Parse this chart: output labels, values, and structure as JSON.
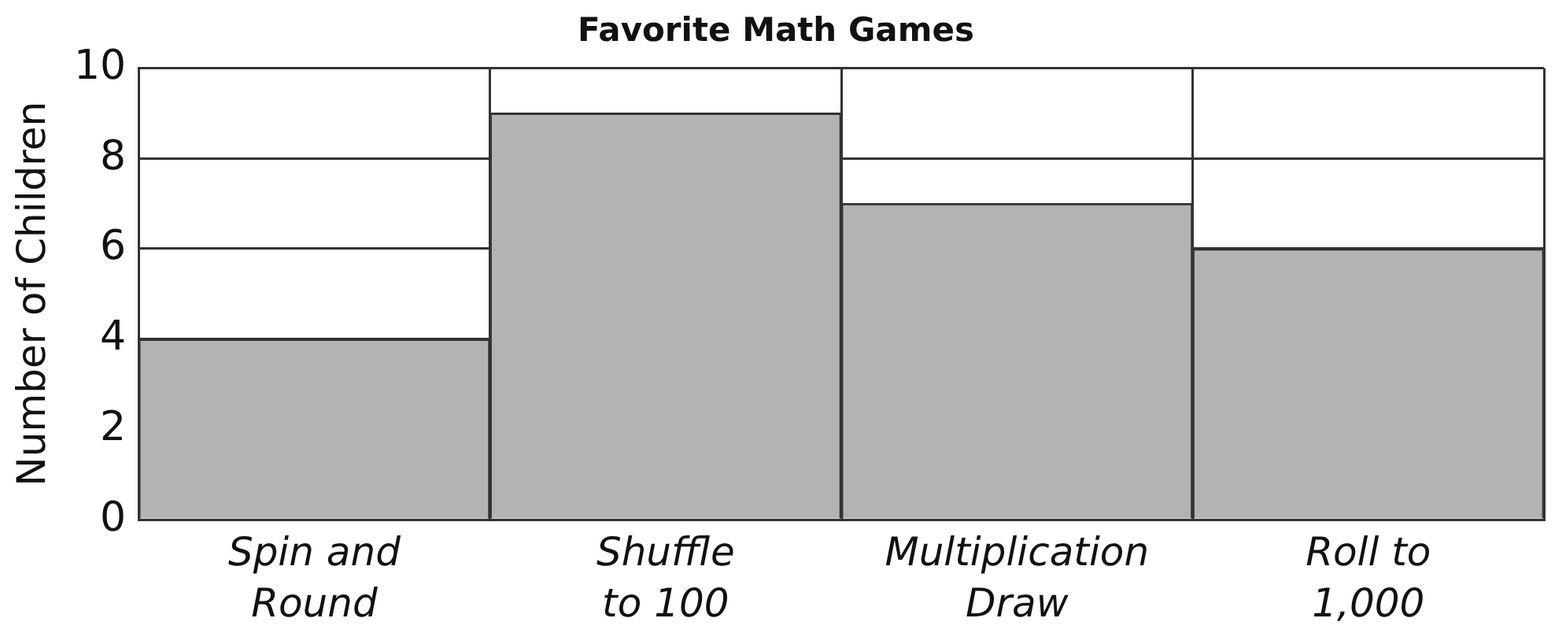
{
  "chart_data": {
    "type": "bar",
    "title": "Favorite Math Games",
    "ylabel": "Number of Children",
    "categories": [
      "Spin and Round",
      "Shuffle to 100",
      "Multiplication Draw",
      "Roll to 1,000"
    ],
    "values": [
      4,
      9,
      7,
      6
    ],
    "color": "#b3b3b3",
    "ylim": [
      0,
      10
    ],
    "yticks": [
      0,
      2,
      4,
      6,
      8,
      10
    ],
    "grid": true
  }
}
